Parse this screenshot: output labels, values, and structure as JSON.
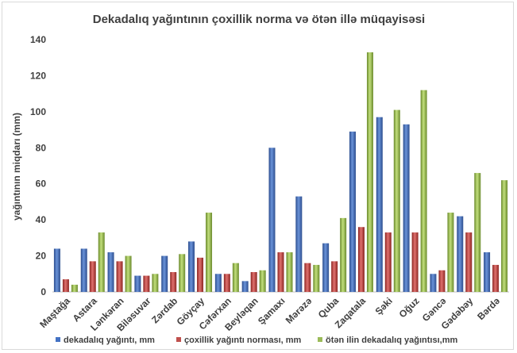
{
  "chart_data": {
    "type": "bar",
    "title": "Dekadalıq yağıntının çoxillik norma  və ötən illə müqayisəsi",
    "xlabel": "",
    "ylabel": "yağıntının miqdarı (mm)",
    "ylim": [
      0,
      140
    ],
    "yticks": [
      0,
      20,
      40,
      60,
      80,
      100,
      120,
      140
    ],
    "grid": false,
    "legend_position": "bottom",
    "categories": [
      "Maştağa",
      "Astara",
      "Lənkəran",
      "Biləsuvar",
      "Zərdab",
      "Göyçay",
      "Cəfərxan",
      "Beyləqan",
      "Şamaxı",
      "Mərəzə",
      "Quba",
      "Zaqatala",
      "Şəki",
      "Oğuz",
      "Gəncə",
      "Gədəbəy",
      "Bərdə"
    ],
    "series": [
      {
        "name": "dekadalıq yağıntı, mm",
        "color": "#4472c4",
        "values": [
          24,
          24,
          22,
          9,
          20,
          28,
          10,
          6,
          80,
          53,
          27,
          89,
          97,
          93,
          10,
          42,
          22
        ]
      },
      {
        "name": "çoxillik yağıntı norması, mm",
        "color": "#c0504d",
        "values": [
          7,
          17,
          17,
          9,
          11,
          19,
          10,
          11,
          22,
          16,
          17,
          36,
          33,
          33,
          12,
          33,
          15
        ]
      },
      {
        "name": "ötən ilin dekadalıq yağıntısı,mm",
        "color": "#9bbb59",
        "values": [
          4,
          33,
          20,
          10,
          21,
          44,
          16,
          12,
          22,
          15,
          41,
          133,
          101,
          112,
          44,
          66,
          62
        ]
      }
    ]
  }
}
